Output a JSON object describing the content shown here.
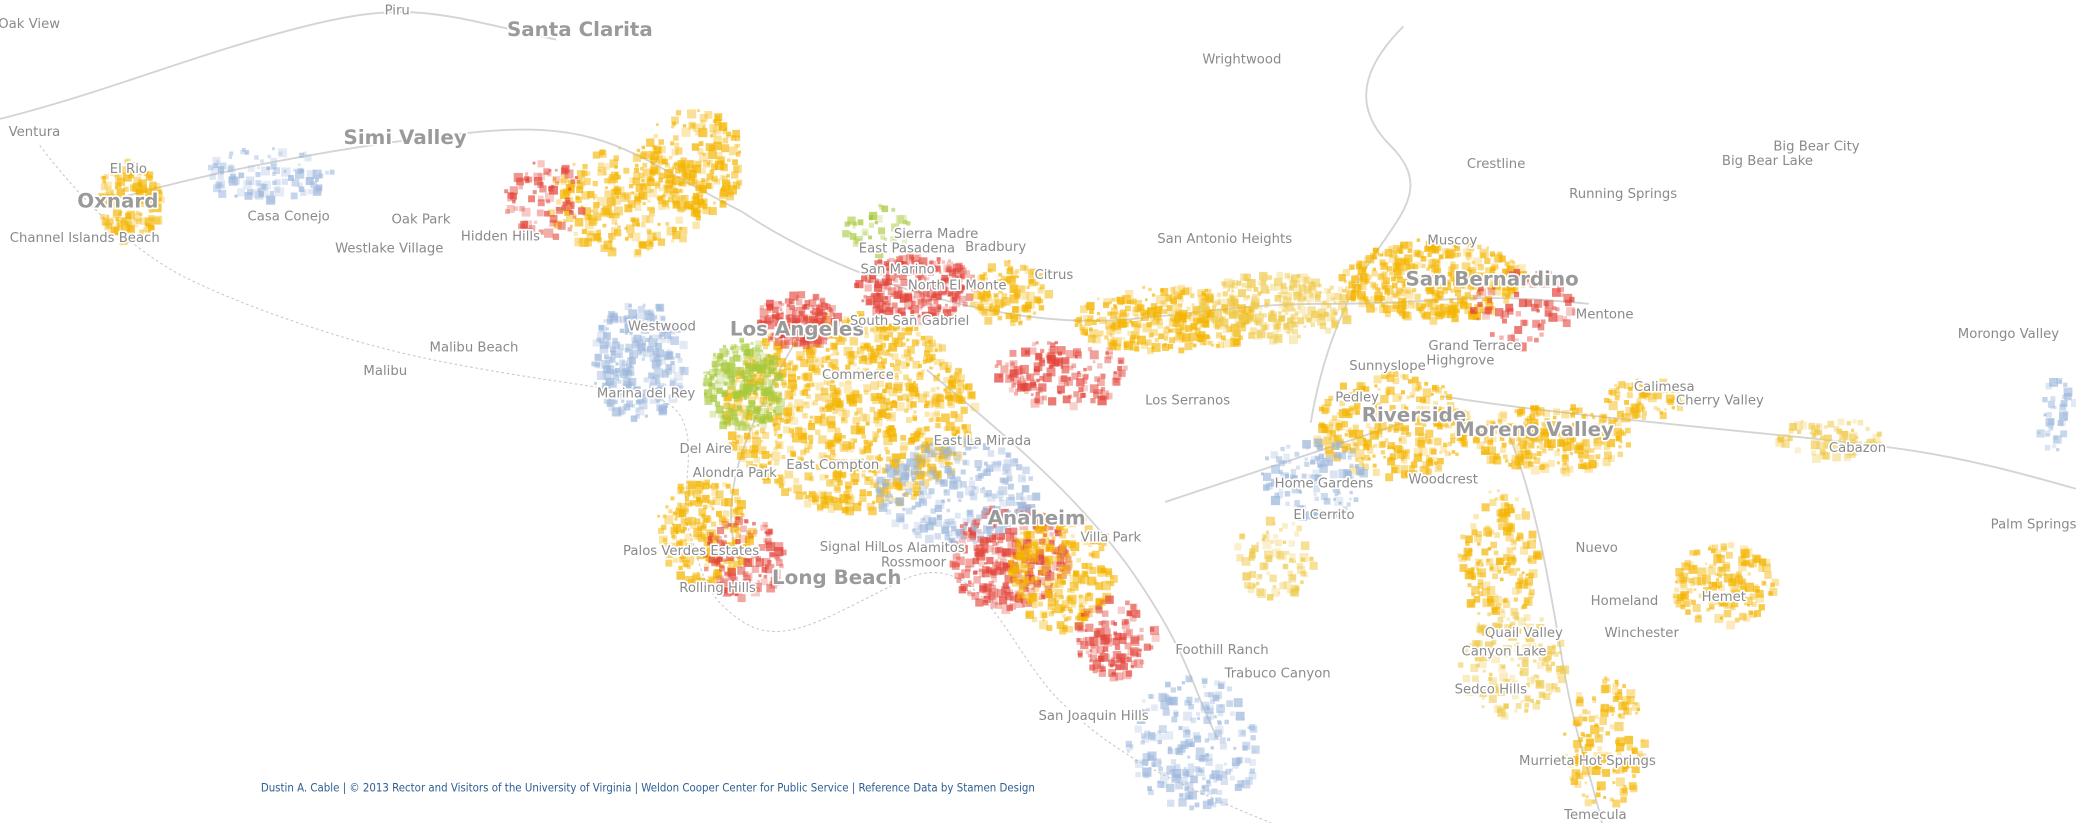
{
  "map": {
    "labels": [
      "Piru",
      "Oak View",
      "Santa Clarita",
      "Wrightwood",
      "Ventura",
      "Simi Valley",
      "El Rio",
      "Oxnard",
      "Casa Conejo",
      "Oak Park",
      "Hidden Hills",
      "Westlake Village",
      "Channel Islands Beach",
      "Sierra Madre",
      "East Pasadena",
      "Bradbury",
      "San Antonio Heights",
      "Muscoy",
      "Crestline",
      "Big Bear City",
      "Big Bear Lake",
      "Running Springs",
      "San Bernardino",
      "San Marino",
      "North El Monte",
      "Citrus",
      "Mentone",
      "Westwood",
      "Los Angeles",
      "South San Gabriel",
      "Morongo Valley",
      "Malibu Beach",
      "Grand Terrace",
      "Highgrove",
      "Sunnyslope",
      "Malibu",
      "Commerce",
      "Calimesa",
      "Marina del Rey",
      "Pedley",
      "Cherry Valley",
      "Los Serranos",
      "Riverside",
      "Moreno Valley",
      "East La Mirada",
      "Cabazon",
      "Del Aire",
      "East Compton",
      "Alondra Park",
      "Home Gardens",
      "Woodcrest",
      "Anaheim",
      "El Cerrito",
      "Palm Springs",
      "Villa Park",
      "Palos Verdes Estates",
      "Signal Hill",
      "Los Alamitos",
      "Nuevo",
      "Rossmoor",
      "Long Beach",
      "Rolling Hills",
      "Homeland",
      "Hemet",
      "Quail Valley",
      "Winchester",
      "Foothill Ranch",
      "Canyon Lake",
      "Trabuco Canyon",
      "Sedco Hills",
      "San Joaquin Hills",
      "Murrieta Hot Springs",
      "Temecula"
    ],
    "attribution": "Dustin A. Cable | © 2013 Rector and Visitors of the University of Virginia | Weldon Cooper Center for Public Service | Reference Data by Stamen Design"
  }
}
